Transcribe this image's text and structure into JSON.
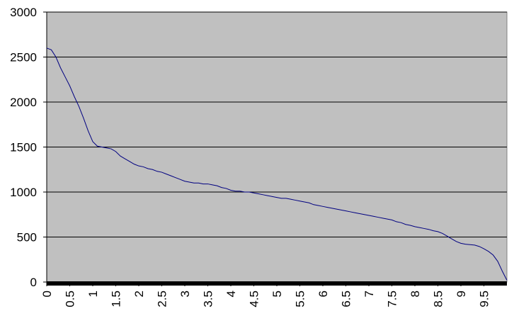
{
  "chart_data": {
    "type": "line",
    "x": [
      0,
      0.1,
      0.2,
      0.3,
      0.4,
      0.5,
      0.6,
      0.7,
      0.8,
      0.9,
      1,
      1.1,
      1.2,
      1.3,
      1.4,
      1.5,
      1.6,
      1.7,
      1.8,
      1.9,
      2,
      2.1,
      2.2,
      2.3,
      2.4,
      2.5,
      2.6,
      2.7,
      2.8,
      2.9,
      3,
      3.1,
      3.2,
      3.3,
      3.4,
      3.5,
      3.6,
      3.7,
      3.8,
      3.9,
      4,
      4.1,
      4.2,
      4.3,
      4.4,
      4.5,
      4.6,
      4.7,
      4.8,
      4.9,
      5,
      5.1,
      5.2,
      5.3,
      5.4,
      5.5,
      5.6,
      5.7,
      5.8,
      5.9,
      6,
      6.1,
      6.2,
      6.3,
      6.4,
      6.5,
      6.6,
      6.7,
      6.8,
      6.9,
      7,
      7.1,
      7.2,
      7.3,
      7.4,
      7.5,
      7.6,
      7.7,
      7.8,
      7.9,
      8,
      8.1,
      8.2,
      8.3,
      8.4,
      8.5,
      8.6,
      8.7,
      8.8,
      8.9,
      9,
      9.1,
      9.2,
      9.3,
      9.4,
      9.5,
      9.6,
      9.7,
      9.8,
      9.9,
      10
    ],
    "series": [
      {
        "color": "#000080",
        "values": [
          2600,
          2580,
          2500,
          2380,
          2280,
          2180,
          2060,
          1950,
          1820,
          1680,
          1560,
          1510,
          1500,
          1490,
          1480,
          1450,
          1400,
          1370,
          1340,
          1310,
          1290,
          1280,
          1260,
          1250,
          1230,
          1220,
          1200,
          1180,
          1160,
          1140,
          1120,
          1110,
          1100,
          1100,
          1090,
          1090,
          1080,
          1070,
          1050,
          1040,
          1020,
          1010,
          1010,
          1000,
          1000,
          990,
          980,
          970,
          960,
          950,
          940,
          930,
          930,
          920,
          910,
          900,
          890,
          880,
          860,
          850,
          840,
          830,
          820,
          810,
          800,
          790,
          780,
          770,
          760,
          750,
          740,
          730,
          720,
          710,
          700,
          690,
          670,
          660,
          640,
          630,
          615,
          605,
          595,
          585,
          570,
          560,
          540,
          510,
          480,
          450,
          430,
          420,
          415,
          410,
          395,
          370,
          340,
          300,
          230,
          120,
          20
        ]
      }
    ],
    "xlim": [
      0,
      10
    ],
    "xticks": [
      0,
      0.5,
      1,
      1.5,
      2,
      2.5,
      3,
      3.5,
      4,
      4.5,
      5,
      5.5,
      6,
      6.5,
      7,
      7.5,
      8,
      8.5,
      9,
      9.5
    ],
    "ylim": [
      0,
      3000
    ],
    "yticks": [
      0,
      500,
      1000,
      1500,
      2000,
      2500,
      3000
    ],
    "grid": true,
    "plot_background": "#c0c0c0"
  }
}
